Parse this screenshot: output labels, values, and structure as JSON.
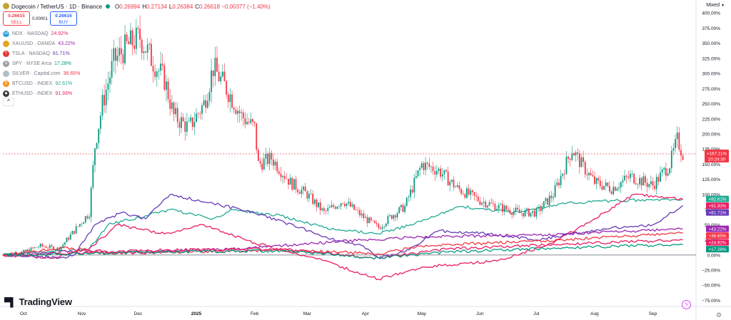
{
  "header": {
    "title": "Dogecoin / TetherUS · 1D · Binance",
    "open_label": "O",
    "open": "0.26994",
    "high_label": "H",
    "high": "0.27134",
    "low_label": "L",
    "low": "0.26384",
    "close_label": "C",
    "close": "0.26618",
    "change": "−0.00377 (−1.40%)"
  },
  "trade": {
    "sell_price": "0.26615",
    "sell_label": "SELL",
    "spread": "0.00001",
    "buy_price": "0.26616",
    "buy_label": "BUY"
  },
  "legend": [
    {
      "icon": "ndx-icon",
      "icon_text": "100",
      "label": "NDX · NASDAQ",
      "value": "24.92%",
      "color": "#e91e63",
      "icon_color": "#2a9fd8"
    },
    {
      "icon": "xauusd-icon",
      "icon_text": "",
      "label": "XAUUSD · OANDA",
      "value": "43.22%",
      "color": "#9c27b0",
      "icon_color": "#e6a520"
    },
    {
      "icon": "tsla-icon",
      "icon_text": "T",
      "label": "TSLA · NASDAQ",
      "value": "81.71%",
      "color": "#673ab7",
      "icon_color": "#e53935"
    },
    {
      "icon": "spy-icon",
      "icon_text": "$",
      "label": "SPY · NYSE Arca",
      "value": "17.28%",
      "color": "#089981",
      "icon_color": "#9e9e9e"
    },
    {
      "icon": "silver-icon",
      "icon_text": "",
      "label": "SILVER · Capital.com",
      "value": "36.65%",
      "color": "#f23645",
      "icon_color": "#b0bec5"
    },
    {
      "icon": "btcusd-icon",
      "icon_text": "₿",
      "label": "BTCUSD · INDEX",
      "value": "92.61%",
      "color": "#22ab94",
      "icon_color": "#f7931a"
    },
    {
      "icon": "ethusd-icon",
      "icon_text": "◆",
      "label": "ETHUSD · INDEX",
      "value": "91.93%",
      "color": "#e91e63",
      "icon_color": "#3c3c3d"
    }
  ],
  "collapse_glyph": "^",
  "scale_mode": "Mixed",
  "branding": "TradingView",
  "chart_data": {
    "type": "line",
    "main_series": {
      "name": "Dogecoin / TetherUS",
      "type": "candlestick",
      "color_up": "#089981",
      "color_down": "#f23645",
      "x": [
        "2024-09-20",
        "2024-10-01",
        "2024-10-10",
        "2024-10-20",
        "2024-10-28",
        "2024-11-05",
        "2024-11-08",
        "2024-11-12",
        "2024-11-18",
        "2024-11-25",
        "2024-12-02",
        "2024-12-08",
        "2024-12-15",
        "2024-12-20",
        "2024-12-28",
        "2025-01-05",
        "2025-01-10",
        "2025-01-18",
        "2025-01-25",
        "2025-02-01",
        "2025-02-03",
        "2025-02-10",
        "2025-02-20",
        "2025-03-01",
        "2025-03-10",
        "2025-03-20",
        "2025-04-01",
        "2025-04-08",
        "2025-04-15",
        "2025-04-22",
        "2025-05-01",
        "2025-05-10",
        "2025-05-20",
        "2025-06-01",
        "2025-06-10",
        "2025-06-22",
        "2025-07-01",
        "2025-07-10",
        "2025-07-20",
        "2025-07-25",
        "2025-08-01",
        "2025-08-10",
        "2025-08-20",
        "2025-09-01",
        "2025-09-10",
        "2025-09-14",
        "2025-09-17"
      ],
      "values": [
        0,
        5,
        15,
        10,
        40,
        70,
        180,
        250,
        320,
        345,
        360,
        325,
        290,
        230,
        210,
        250,
        310,
        270,
        230,
        210,
        150,
        160,
        120,
        100,
        70,
        90,
        60,
        45,
        65,
        80,
        150,
        140,
        110,
        90,
        80,
        70,
        70,
        100,
        175,
        150,
        120,
        110,
        130,
        115,
        150,
        190,
        167.11
      ]
    },
    "last_price_label": "+167.11%",
    "countdown_label": "10:24:30",
    "series": [
      {
        "name": "BTCUSD · INDEX",
        "color": "#22ab94",
        "label": "+92.61%",
        "x": [
          "2024-09-20",
          "2024-10-15",
          "2024-11-05",
          "2024-11-15",
          "2024-12-05",
          "2024-12-18",
          "2025-01-10",
          "2025-01-20",
          "2025-02-15",
          "2025-03-10",
          "2025-04-08",
          "2025-04-25",
          "2025-05-22",
          "2025-06-22",
          "2025-07-14",
          "2025-08-14",
          "2025-09-17"
        ],
        "values": [
          0,
          5,
          10,
          50,
          65,
          75,
          60,
          75,
          65,
          45,
          35,
          50,
          80,
          70,
          85,
          90,
          92.61
        ]
      },
      {
        "name": "ETHUSD · INDEX",
        "color": "#e91e63",
        "label": "+91.93%",
        "x": [
          "2024-09-20",
          "2024-10-15",
          "2024-11-05",
          "2024-11-20",
          "2024-12-15",
          "2025-01-05",
          "2025-02-01",
          "2025-03-05",
          "2025-04-08",
          "2025-05-01",
          "2025-06-10",
          "2025-07-10",
          "2025-08-01",
          "2025-08-22",
          "2025-09-17"
        ],
        "values": [
          0,
          -5,
          10,
          50,
          35,
          50,
          20,
          -5,
          -40,
          -20,
          -10,
          20,
          60,
          100,
          91.93
        ]
      },
      {
        "name": "TSLA · NASDAQ",
        "color": "#673ab7",
        "label": "+81.71%",
        "x": [
          "2024-09-20",
          "2024-10-20",
          "2024-10-28",
          "2024-11-08",
          "2024-11-22",
          "2024-12-05",
          "2024-12-18",
          "2025-01-10",
          "2025-02-01",
          "2025-02-25",
          "2025-03-10",
          "2025-03-31",
          "2025-04-08",
          "2025-04-22",
          "2025-05-10",
          "2025-06-05",
          "2025-07-01",
          "2025-07-20",
          "2025-08-10",
          "2025-09-01",
          "2025-09-17"
        ],
        "values": [
          0,
          -5,
          0,
          50,
          70,
          60,
          100,
          85,
          70,
          45,
          30,
          15,
          -5,
          5,
          40,
          35,
          25,
          35,
          45,
          50,
          81.71
        ]
      },
      {
        "name": "XAUUSD · OANDA",
        "color": "#9c27b0",
        "label": "+43.22%",
        "x": [
          "2024-09-20",
          "2024-11-05",
          "2024-11-20",
          "2025-01-20",
          "2025-04-01",
          "2025-05-01",
          "2025-07-01",
          "2025-09-17"
        ],
        "values": [
          0,
          8,
          4,
          10,
          25,
          30,
          33,
          43.22
        ]
      },
      {
        "name": "SILVER · Capital.com",
        "color": "#f23645",
        "label": "+36.65%",
        "x": [
          "2024-09-20",
          "2024-10-22",
          "2024-11-20",
          "2025-02-15",
          "2025-04-08",
          "2025-05-01",
          "2025-07-15",
          "2025-09-17"
        ],
        "values": [
          0,
          12,
          3,
          8,
          2,
          15,
          25,
          36.65
        ]
      },
      {
        "name": "NDX · NASDAQ",
        "color": "#e91e63",
        "label": "+24.92%",
        "x": [
          "2024-09-20",
          "2024-12-15",
          "2025-02-15",
          "2025-04-08",
          "2025-05-15",
          "2025-07-15",
          "2025-09-17"
        ],
        "values": [
          0,
          8,
          10,
          -5,
          10,
          18,
          24.92
        ]
      },
      {
        "name": "SPY · NYSE Arca",
        "color": "#089981",
        "label": "+17.28%",
        "x": [
          "2024-09-20",
          "2024-12-15",
          "2025-02-15",
          "2025-04-08",
          "2025-05-15",
          "2025-07-15",
          "2025-09-17"
        ],
        "values": [
          0,
          5,
          7,
          -5,
          5,
          12,
          17.28
        ]
      }
    ],
    "ylim": [
      -78,
      405
    ],
    "y_ticks": [
      "400.00%",
      "375.00%",
      "350.00%",
      "325.00%",
      "300.00%",
      "275.00%",
      "250.00%",
      "225.00%",
      "200.00%",
      "175.00%",
      "150.00%",
      "125.00%",
      "100.00%",
      "75.00%",
      "50.00%",
      "25.00%",
      "0.00%",
      "−25.00%",
      "−50.00%",
      "−75.00%"
    ],
    "y_tick_values": [
      400,
      375,
      350,
      325,
      300,
      275,
      250,
      225,
      200,
      175,
      150,
      125,
      100,
      75,
      50,
      25,
      0,
      -25,
      -50,
      -75
    ],
    "x_ticks": [
      "Oct",
      "Nov",
      "Dec",
      "2025",
      "Feb",
      "Mar",
      "Apr",
      "May",
      "Jun",
      "Jul",
      "Aug",
      "Sep"
    ],
    "x_tick_dates": [
      "2024-10-01",
      "2024-11-01",
      "2024-12-01",
      "2025-01-01",
      "2025-02-01",
      "2025-03-01",
      "2025-04-01",
      "2025-05-01",
      "2025-06-01",
      "2025-07-01",
      "2025-08-01",
      "2025-09-01"
    ],
    "x_range": [
      "2024-09-20",
      "2025-09-24"
    ],
    "grid": false,
    "zero_line": true
  }
}
